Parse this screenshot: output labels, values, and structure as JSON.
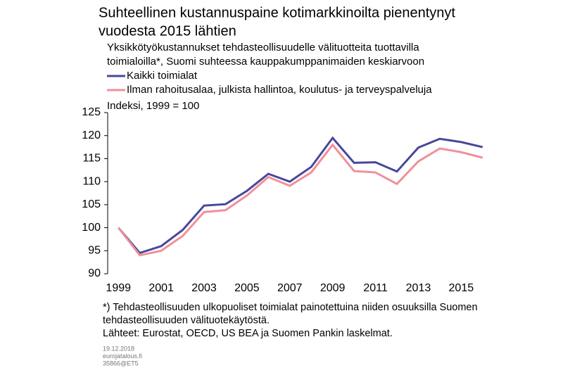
{
  "chart_data": {
    "type": "line",
    "title": [
      "Suhteellinen kustannuspaine kotimarkkinoilta pienentynyt",
      "vuodesta 2015 lähtien"
    ],
    "subtitle": [
      "Yksikkötyökustannukset tehdasteollisuudelle välituotteita tuottavilla",
      "toimialoilla*, Suomi suhteessa kauppakumppanimaiden keskiarvoon"
    ],
    "y_label": "Indeksi, 1999 = 100",
    "x": [
      1999,
      2000,
      2001,
      2002,
      2003,
      2004,
      2005,
      2006,
      2007,
      2008,
      2009,
      2010,
      2011,
      2012,
      2013,
      2014,
      2015,
      2016
    ],
    "series": [
      {
        "name": "Kaikki toimialat",
        "color": "#47479c",
        "values": [
          100,
          94.5,
          96,
          99.5,
          104.8,
          105.1,
          108,
          111.7,
          110,
          113.2,
          119.5,
          114.1,
          114.2,
          112.2,
          117.4,
          119.3,
          118.6,
          117.5
        ]
      },
      {
        "name": "Ilman rahoitusalaa, julkista hallintoa, koulutus- ja terveyspalveluja",
        "color": "#f0909a",
        "values": [
          100,
          94,
          95,
          98.2,
          103.4,
          103.8,
          107,
          111,
          109.1,
          112,
          118,
          112.3,
          112,
          109.5,
          114.4,
          117.2,
          116.4,
          115.2
        ]
      }
    ],
    "xlim": [
      1998.5,
      2016.5
    ],
    "xticks": [
      1999,
      2001,
      2003,
      2005,
      2007,
      2009,
      2011,
      2013,
      2015
    ],
    "ylim": [
      90,
      125
    ],
    "yticks": [
      90,
      95,
      100,
      105,
      110,
      115,
      120,
      125
    ],
    "notes": [
      "*) Tehdasteollisuuden ulkopuoliset toimialat painotettuina niiden osuuksilla Suomen",
      "tehdasteollisuuden välituotekäytöstä.",
      "Lähteet: Eurostat, OECD, US BEA ja Suomen Pankin laskelmat."
    ],
    "footer": [
      "19.12.2018",
      "eurojatalous.fi",
      "35866@ET5"
    ]
  }
}
